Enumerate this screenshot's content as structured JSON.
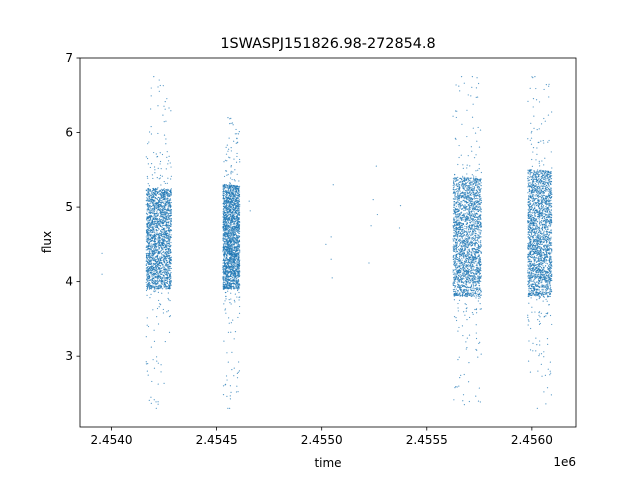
{
  "chart_data": {
    "type": "scatter",
    "title": "1SWASPJ151826.98-272854.8",
    "xlabel": "time",
    "ylabel": "flux",
    "x_offset_label": "1e6",
    "xlim": [
      2453850,
      2456210
    ],
    "ylim": [
      2.05,
      7.0
    ],
    "x_ticks": [
      2454000,
      2454500,
      2455000,
      2455500,
      2456000
    ],
    "x_tick_labels": [
      "2.4540",
      "2.4545",
      "2.4550",
      "2.4555",
      "2.4560"
    ],
    "y_ticks": [
      3,
      4,
      5,
      6,
      7
    ],
    "y_tick_labels": [
      "3",
      "4",
      "5",
      "6",
      "7"
    ],
    "grid": false,
    "point_color": "#1f77b4",
    "series": [
      {
        "observing_seasons": [
          {
            "x_range": [
              2454165,
              2454285
            ],
            "flux_median": 4.6,
            "flux_core": [
              3.9,
              5.25
            ],
            "flux_extremes": [
              2.3,
              6.75
            ]
          },
          {
            "x_range": [
              2454530,
              2454610
            ],
            "flux_median": 4.55,
            "flux_core": [
              3.9,
              5.3
            ],
            "flux_extremes": [
              2.3,
              6.2
            ]
          },
          {
            "x_range": [
              2455625,
              2455760
            ],
            "flux_median": 4.5,
            "flux_core": [
              3.8,
              5.4
            ],
            "flux_extremes": [
              2.35,
              6.75
            ]
          },
          {
            "x_range": [
              2455980,
              2456095
            ],
            "flux_median": 4.5,
            "flux_core": [
              3.8,
              5.5
            ],
            "flux_extremes": [
              2.3,
              6.75
            ]
          }
        ],
        "isolated_points": [
          {
            "x": 2453955,
            "y": 4.38
          },
          {
            "x": 2453955,
            "y": 4.1
          },
          {
            "x": 2454655,
            "y": 5.08
          },
          {
            "x": 2454660,
            "y": 4.95
          },
          {
            "x": 2455020,
            "y": 4.5
          },
          {
            "x": 2455045,
            "y": 4.6
          },
          {
            "x": 2455045,
            "y": 4.3
          },
          {
            "x": 2455050,
            "y": 4.05
          },
          {
            "x": 2455055,
            "y": 5.3
          },
          {
            "x": 2455225,
            "y": 4.25
          },
          {
            "x": 2455235,
            "y": 4.75
          },
          {
            "x": 2455245,
            "y": 5.1
          },
          {
            "x": 2455260,
            "y": 5.55
          },
          {
            "x": 2455265,
            "y": 4.9
          },
          {
            "x": 2455370,
            "y": 4.72
          },
          {
            "x": 2455375,
            "y": 5.02
          }
        ]
      }
    ]
  }
}
